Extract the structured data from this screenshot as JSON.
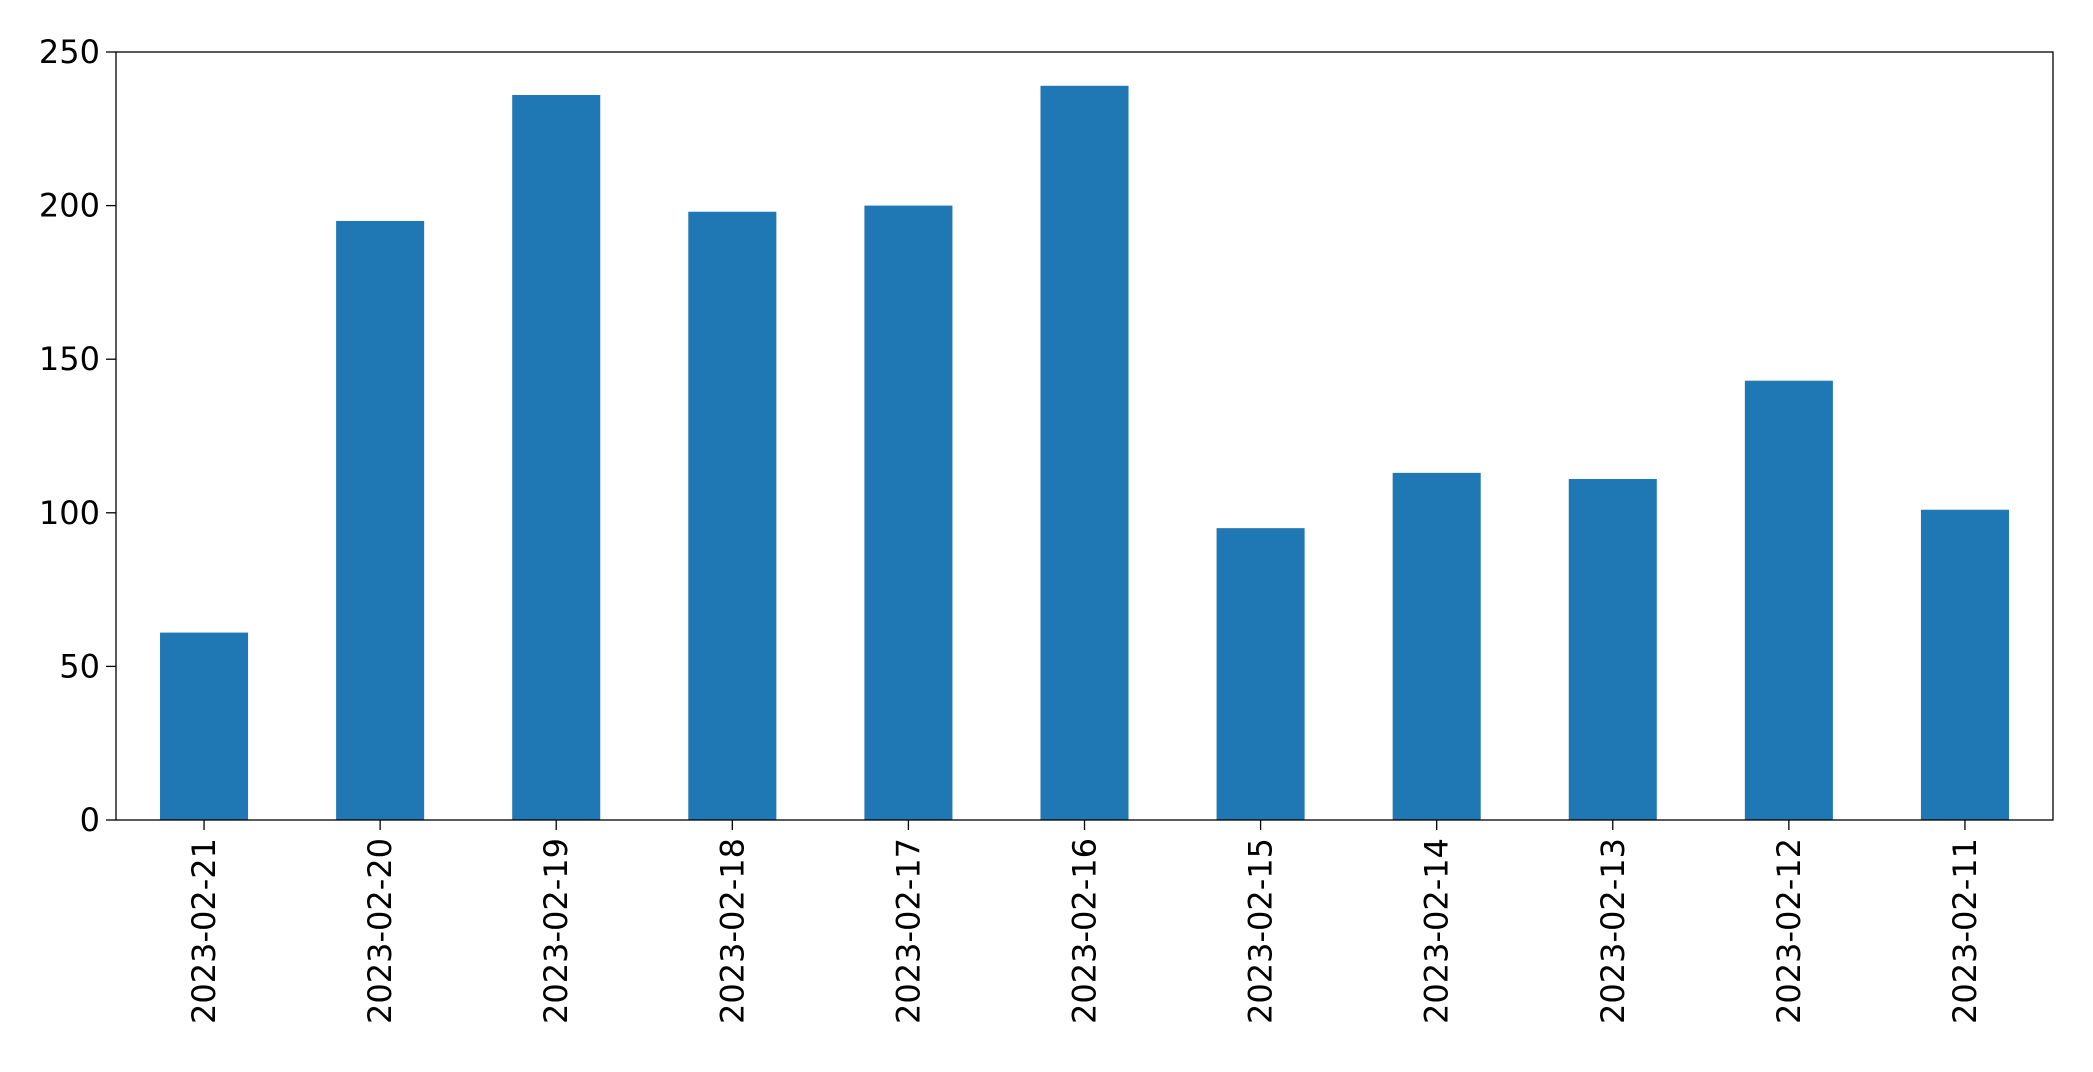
{
  "chart_data": {
    "type": "bar",
    "categories": [
      "2023-02-21",
      "2023-02-20",
      "2023-02-19",
      "2023-02-18",
      "2023-02-17",
      "2023-02-16",
      "2023-02-15",
      "2023-02-14",
      "2023-02-13",
      "2023-02-12",
      "2023-02-11"
    ],
    "values": [
      61,
      195,
      236,
      198,
      200,
      239,
      95,
      113,
      111,
      143,
      101
    ],
    "color": "#1f77b4",
    "ylim": [
      0,
      250
    ],
    "yticks": [
      0,
      50,
      100,
      150,
      200,
      250
    ],
    "grid": false
  }
}
